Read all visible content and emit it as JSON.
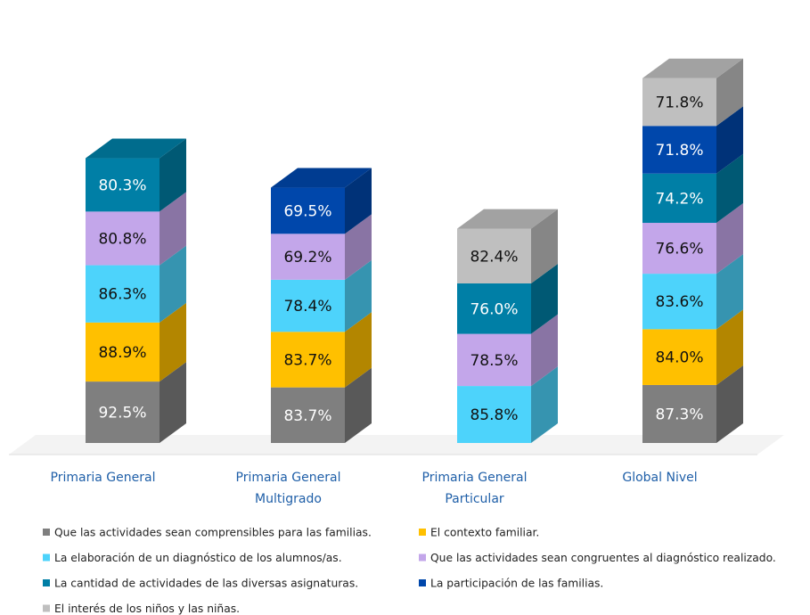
{
  "chart_data": {
    "type": "bar3d_stacked",
    "categories": [
      "Primaria General",
      "Primaria General Multigrado",
      "Primaria General Particular",
      "Global Nivel"
    ],
    "series": [
      {
        "name": "Que las actividades sean comprensibles para las familias.",
        "color": "#7f7f7f",
        "values": [
          92.5,
          83.7,
          null,
          87.3
        ],
        "value_labels": [
          "92.5%",
          "83.7%",
          null,
          "87.3%"
        ]
      },
      {
        "name": "El contexto familiar.",
        "color": "#ffc000",
        "values": [
          88.9,
          83.7,
          null,
          84.0
        ],
        "value_labels": [
          "88.9%",
          "83.7%",
          null,
          "84.0%"
        ]
      },
      {
        "name": "La elaboración de un diagnóstico de los alumnos/as.",
        "color": "#4dd3fb",
        "values": [
          86.3,
          78.4,
          85.8,
          83.6
        ],
        "value_labels": [
          "86.3%",
          "78.4%",
          "85.8%",
          "83.6%"
        ]
      },
      {
        "name": "Que las actividades sean congruentes al diagnóstico realizado.",
        "color": "#c3a6ea",
        "values": [
          80.8,
          69.2,
          78.5,
          76.6
        ],
        "value_labels": [
          "80.8%",
          "69.2%",
          "78.5%",
          "76.6%"
        ]
      },
      {
        "name": "La cantidad de actividades de las diversas asignaturas.",
        "color": "#007fa6",
        "values": [
          80.3,
          null,
          76.0,
          74.2
        ],
        "value_labels": [
          "80.3%",
          null,
          "76.0%",
          "74.2%"
        ]
      },
      {
        "name": "La participación de las familias.",
        "color": "#0047ab",
        "values": [
          null,
          69.5,
          null,
          71.8
        ],
        "value_labels": [
          null,
          "69.5%",
          null,
          "71.8%"
        ]
      },
      {
        "name": "El interés de los niños y las niñas.",
        "color": "#bfbfbf",
        "values": [
          null,
          null,
          82.4,
          71.8
        ],
        "value_labels": [
          null,
          null,
          "82.4%",
          "71.8%"
        ]
      }
    ]
  }
}
